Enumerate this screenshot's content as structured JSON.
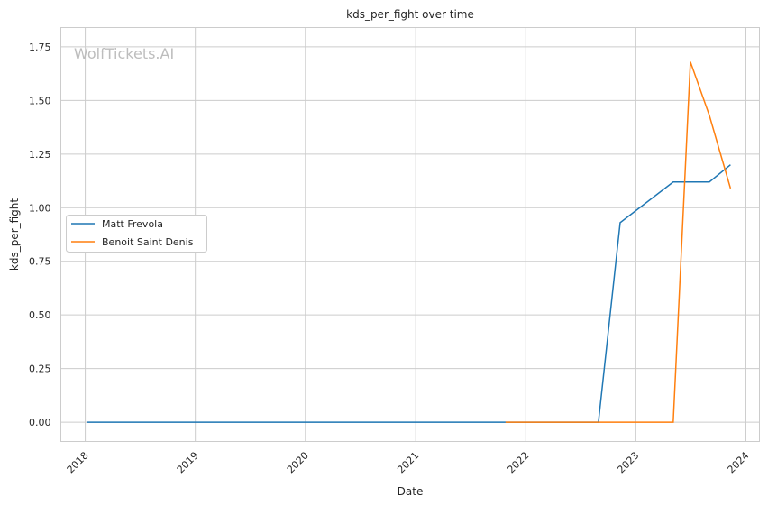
{
  "chart_data": {
    "type": "line",
    "title": "kds_per_fight over time",
    "xlabel": "Date",
    "ylabel": "kds_per_fight",
    "watermark": "WolfTickets.AI",
    "ylim": [
      -0.09,
      1.84
    ],
    "xlim": [
      "2017-10-12",
      "2024-02-15"
    ],
    "x_ticks": [
      "2018",
      "2019",
      "2020",
      "2021",
      "2022",
      "2023",
      "2024"
    ],
    "y_ticks": [
      "0.00",
      "0.25",
      "0.50",
      "0.75",
      "1.00",
      "1.25",
      "1.50",
      "1.75"
    ],
    "grid": true,
    "legend_position": "center-left",
    "series": [
      {
        "name": "Matt Frevola",
        "color": "#1f77b4",
        "x": [
          "2018-01-06",
          "2022-08-30",
          "2022-11-10",
          "2023-05-05",
          "2023-09-02",
          "2023-11-11"
        ],
        "y": [
          0,
          0,
          0.93,
          1.12,
          1.12,
          1.2
        ]
      },
      {
        "name": "Benoit Saint Denis",
        "color": "#ff7f0e",
        "x": [
          "2021-10-26",
          "2023-05-05",
          "2023-07-01",
          "2023-09-02",
          "2023-11-11"
        ],
        "y": [
          0,
          0,
          1.68,
          1.43,
          1.09
        ]
      }
    ]
  }
}
